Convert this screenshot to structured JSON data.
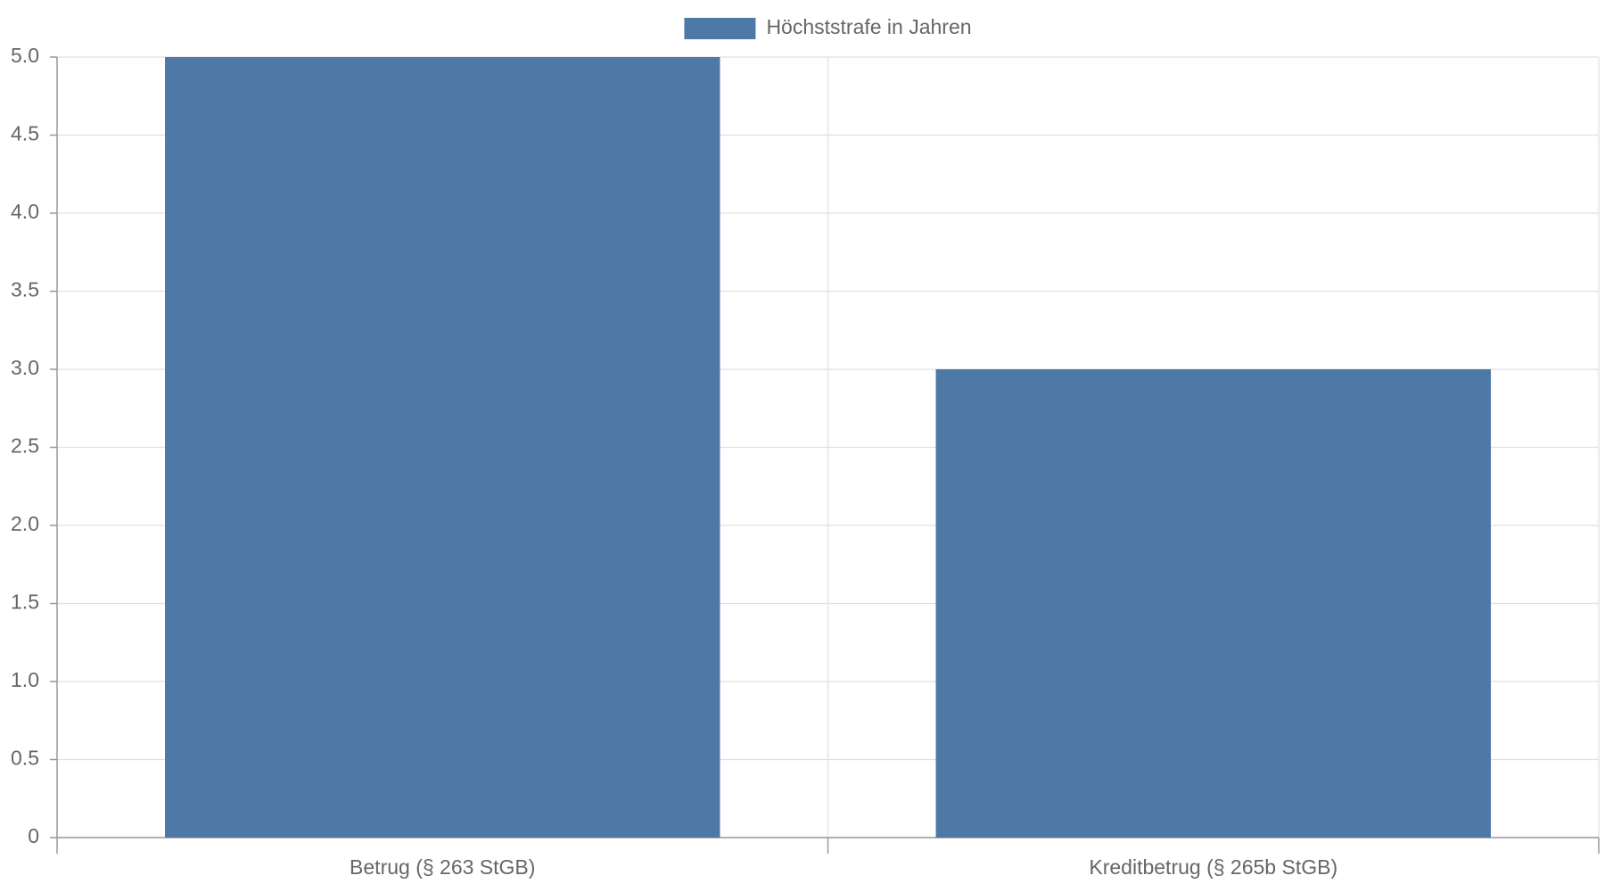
{
  "chart_data": {
    "type": "bar",
    "categories": [
      "Betrug (§ 263 StGB)",
      "Kreditbetrug (§ 265b StGB)"
    ],
    "series": [
      {
        "name": "Höchststrafe in Jahren",
        "color": "#4e78a5",
        "values": [
          5,
          3
        ]
      }
    ],
    "ylim": [
      0,
      5
    ],
    "yticks": [
      0,
      0.5,
      {
        "value": 1,
        "label": "1.0"
      },
      1.5,
      {
        "value": 2,
        "label": "2.0"
      },
      2.5,
      {
        "value": 3,
        "label": "3.0"
      },
      3.5,
      {
        "value": 4,
        "label": "4.0"
      },
      4.5,
      {
        "value": 5,
        "label": "5.0"
      }
    ],
    "grid": true,
    "legend": "top"
  }
}
